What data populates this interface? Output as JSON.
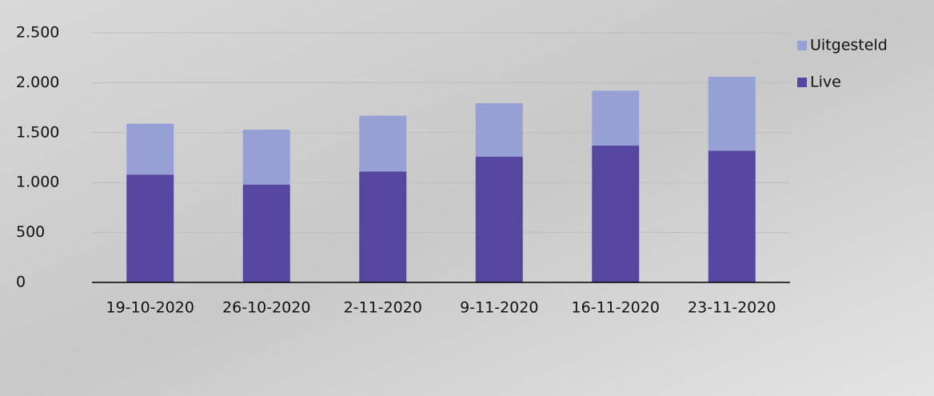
{
  "chart_data": {
    "type": "stacked_bar",
    "categories": [
      "19-10-2020",
      "26-10-2020",
      "2-11-2020",
      "9-11-2020",
      "16-11-2020",
      "23-11-2020"
    ],
    "series": [
      {
        "name": "Live",
        "color": "#5746a0",
        "values": [
          1080,
          980,
          1110,
          1260,
          1370,
          1320
        ]
      },
      {
        "name": "Uitgesteld",
        "color": "#97a0d4",
        "values": [
          510,
          550,
          560,
          535,
          550,
          740
        ]
      }
    ],
    "ylim": [
      0,
      2500
    ],
    "yticks": [
      0,
      500,
      {
        "value": 1000,
        "label": "1.000"
      },
      {
        "value": 1500,
        "label": "1.500"
      },
      {
        "value": 2000,
        "label": "2.000"
      },
      {
        "value": 2500,
        "label": "2.500"
      }
    ],
    "grid": true,
    "legend": "top-right"
  }
}
